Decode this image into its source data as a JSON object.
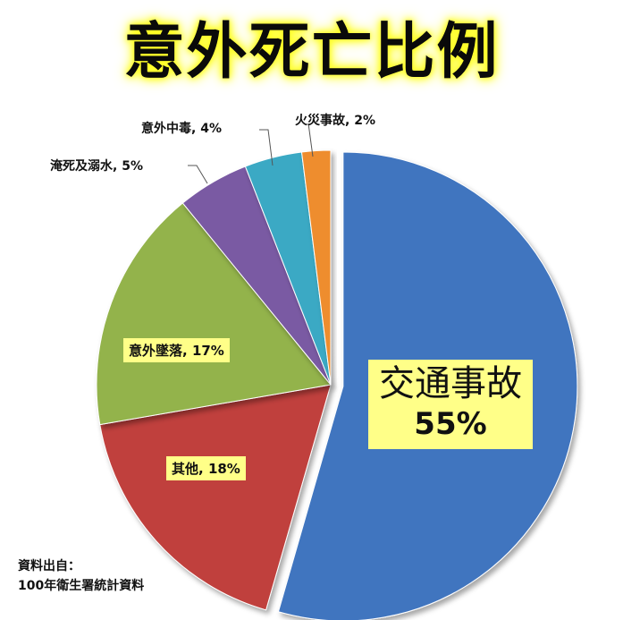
{
  "chart_data": {
    "type": "pie",
    "title": "意外死亡比例",
    "slices": [
      {
        "label": "交通事故",
        "value": 55,
        "color": "#3f74bf",
        "pct_text": "55%"
      },
      {
        "label": "其他",
        "value": 18,
        "color": "#c0413e",
        "pct_text": "18%"
      },
      {
        "label": "意外墜落",
        "value": 17,
        "color": "#93b34c",
        "pct_text": "17%"
      },
      {
        "label": "淹死及溺水",
        "value": 5,
        "color": "#7a5aa3",
        "pct_text": "5%"
      },
      {
        "label": "意外中毒",
        "value": 4,
        "color": "#3aa9c4",
        "pct_text": "4%"
      },
      {
        "label": "火災事故",
        "value": 2,
        "color": "#ee8d2e",
        "pct_text": "2%"
      }
    ]
  },
  "source": {
    "line1": "資料出自：",
    "line2": "100年衛生署統計資料"
  }
}
